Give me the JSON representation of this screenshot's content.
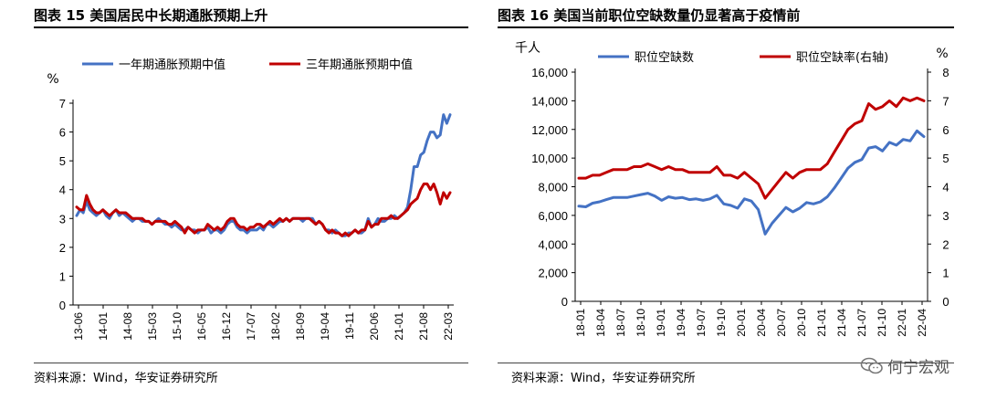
{
  "left_panel": {
    "title": "图表 15 美国居民中长期通胀预期上升",
    "source": "资料来源：Wind，华安证券研究所"
  },
  "right_panel": {
    "title": "图表 16 美国当前职位空缺数量仍显著高于疫情前",
    "source": "资料来源：Wind，华安证券研究所"
  },
  "watermark": {
    "text": "何宁宏观",
    "icon": "wechat-icon"
  },
  "chart_data": [
    {
      "type": "line",
      "title": "",
      "ylabel": "%",
      "ylim": [
        0,
        7
      ],
      "yticks": [
        "0",
        "1",
        "2",
        "3",
        "4",
        "5",
        "6",
        "7"
      ],
      "xticks": [
        "13-06",
        "14-01",
        "14-08",
        "15-03",
        "15-10",
        "16-05",
        "16-12",
        "17-07",
        "18-02",
        "18-09",
        "19-04",
        "19-11",
        "20-06",
        "21-01",
        "21-08",
        "22-03"
      ],
      "legend": "top",
      "series": [
        {
          "name": "一年期通胀预期中值",
          "color": "#4472C4",
          "values": [
            3.1,
            3.3,
            3.2,
            3.6,
            3.3,
            3.2,
            3.1,
            3.2,
            3.3,
            3.1,
            3.0,
            3.2,
            3.3,
            3.1,
            3.2,
            3.1,
            3.0,
            2.9,
            3.0,
            3.0,
            2.9,
            2.9,
            2.9,
            2.8,
            2.9,
            3.0,
            2.9,
            2.8,
            2.8,
            2.7,
            2.8,
            2.7,
            2.6,
            2.6,
            2.7,
            2.6,
            2.6,
            2.5,
            2.6,
            2.6,
            2.7,
            2.5,
            2.6,
            2.6,
            2.5,
            2.6,
            2.8,
            2.9,
            2.9,
            2.7,
            2.6,
            2.6,
            2.5,
            2.6,
            2.6,
            2.6,
            2.7,
            2.6,
            2.8,
            2.8,
            2.7,
            2.8,
            2.9,
            2.9,
            3.0,
            2.9,
            3.0,
            3.0,
            3.0,
            2.9,
            3.0,
            3.0,
            3.0,
            2.8,
            2.9,
            2.8,
            2.6,
            2.6,
            2.5,
            2.6,
            2.5,
            2.4,
            2.4,
            2.5,
            2.5,
            2.6,
            2.5,
            2.5,
            2.6,
            3.0,
            2.7,
            2.8,
            3.0,
            2.9,
            2.9,
            3.0,
            3.0,
            3.1,
            3.0,
            3.1,
            3.2,
            3.4,
            4.0,
            4.8,
            4.8,
            5.2,
            5.3,
            5.7,
            6.0,
            6.0,
            5.8,
            5.9,
            6.6,
            6.3,
            6.6
          ]
        },
        {
          "name": "三年期通胀预期中值",
          "color": "#C00000",
          "values": [
            3.4,
            3.3,
            3.3,
            3.8,
            3.5,
            3.3,
            3.2,
            3.2,
            3.3,
            3.2,
            3.1,
            3.2,
            3.3,
            3.2,
            3.2,
            3.2,
            3.1,
            3.0,
            3.0,
            3.0,
            3.0,
            2.9,
            2.9,
            2.8,
            2.9,
            2.9,
            2.9,
            2.9,
            2.8,
            2.8,
            2.9,
            2.8,
            2.7,
            2.5,
            2.7,
            2.6,
            2.5,
            2.6,
            2.6,
            2.6,
            2.8,
            2.7,
            2.6,
            2.7,
            2.6,
            2.7,
            2.9,
            3.0,
            3.0,
            2.8,
            2.7,
            2.7,
            2.6,
            2.7,
            2.7,
            2.8,
            2.8,
            2.7,
            2.8,
            2.9,
            2.8,
            2.9,
            3.0,
            2.9,
            3.0,
            2.9,
            3.0,
            3.0,
            3.0,
            3.0,
            3.0,
            3.0,
            2.9,
            2.8,
            2.9,
            2.8,
            2.6,
            2.5,
            2.6,
            2.5,
            2.5,
            2.4,
            2.5,
            2.4,
            2.5,
            2.6,
            2.5,
            2.6,
            2.6,
            2.9,
            2.7,
            2.8,
            2.8,
            3.0,
            3.0,
            3.0,
            3.1,
            3.0,
            3.0,
            3.1,
            3.2,
            3.3,
            3.5,
            3.6,
            3.7,
            4.0,
            4.2,
            4.2,
            4.0,
            4.2,
            3.9,
            3.5,
            3.9,
            3.7,
            3.9
          ]
        }
      ]
    },
    {
      "type": "line",
      "title": "",
      "ylabel": "千人",
      "ylabel_right": "%",
      "ylim": [
        0,
        16000
      ],
      "ylim_right": [
        0,
        8
      ],
      "yticks": [
        "0",
        "2,000",
        "4,000",
        "6,000",
        "8,000",
        "10,000",
        "12,000",
        "14,000",
        "16,000"
      ],
      "yticks_right": [
        "0",
        "1",
        "2",
        "3",
        "4",
        "5",
        "6",
        "7",
        "8"
      ],
      "xticks": [
        "18-01",
        "18-04",
        "18-07",
        "18-10",
        "19-01",
        "19-04",
        "19-07",
        "19-10",
        "20-01",
        "20-04",
        "20-07",
        "20-10",
        "21-01",
        "21-04",
        "21-07",
        "21-10",
        "22-01",
        "22-04"
      ],
      "legend": "top",
      "series": [
        {
          "name": "职位空缺数",
          "axis": "left",
          "color": "#4472C4",
          "values": [
            6650,
            6600,
            6850,
            6950,
            7100,
            7250,
            7250,
            7250,
            7350,
            7450,
            7550,
            7350,
            7050,
            7300,
            7200,
            7250,
            7100,
            7150,
            7050,
            7150,
            7400,
            6800,
            6700,
            6500,
            7150,
            7000,
            6400,
            4700,
            5450,
            6000,
            6550,
            6250,
            6500,
            6900,
            6800,
            6950,
            7300,
            7900,
            8600,
            9300,
            9700,
            9900,
            10700,
            10800,
            10500,
            11100,
            10900,
            11300,
            11200,
            11900,
            11500
          ]
        },
        {
          "name": "职位空缺率(右轴)",
          "axis": "right",
          "color": "#C00000",
          "values": [
            4.3,
            4.3,
            4.4,
            4.4,
            4.5,
            4.6,
            4.6,
            4.6,
            4.7,
            4.7,
            4.8,
            4.7,
            4.6,
            4.7,
            4.6,
            4.6,
            4.5,
            4.5,
            4.5,
            4.5,
            4.7,
            4.4,
            4.4,
            4.3,
            4.5,
            4.3,
            4.1,
            3.6,
            3.9,
            4.2,
            4.5,
            4.3,
            4.5,
            4.6,
            4.6,
            4.6,
            4.8,
            5.2,
            5.6,
            6.0,
            6.2,
            6.3,
            6.9,
            6.7,
            6.8,
            7.0,
            6.8,
            7.1,
            7.0,
            7.1,
            7.0
          ]
        }
      ]
    }
  ]
}
